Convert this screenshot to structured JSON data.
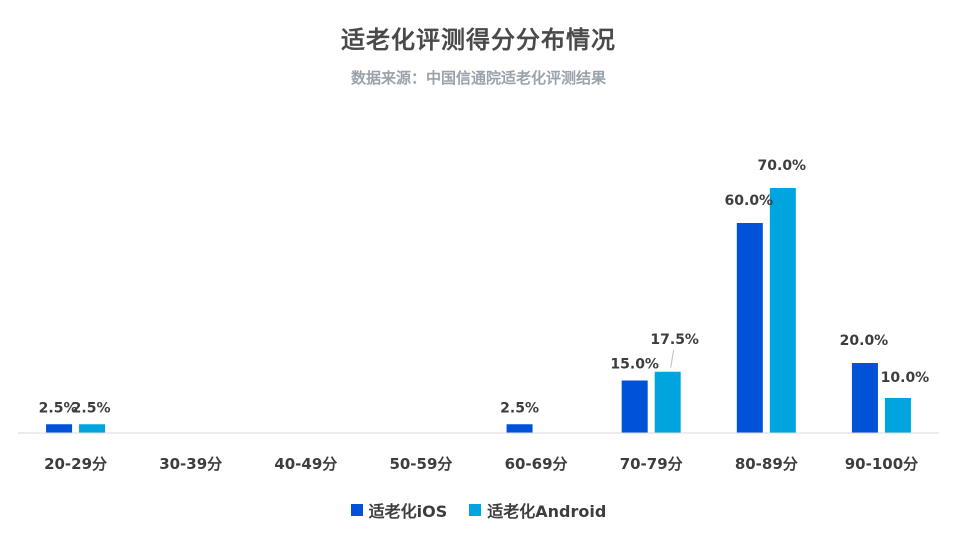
{
  "title": "适老化评测得分分布情况",
  "subtitle": "数据来源：中国信通院适老化评测结果",
  "colors": {
    "series_0": "#0052D9",
    "series_1": "#00A5E0",
    "axis": "#d9d9d9",
    "label_text": "#3d3d3d",
    "leader_line": "#bfbfbf"
  },
  "chart_data": {
    "type": "bar",
    "title": "适老化评测得分分布情况",
    "subtitle": "数据来源：中国信通院适老化评测结果",
    "categories": [
      "20-29分",
      "30-39分",
      "40-49分",
      "50-59分",
      "60-69分",
      "70-79分",
      "80-89分",
      "90-100分"
    ],
    "series": [
      {
        "name": "适老化iOS",
        "values": [
          2.5,
          0,
          0,
          0,
          2.5,
          15.0,
          60.0,
          20.0
        ],
        "labels": [
          "2.5%",
          "",
          "",
          "",
          "2.5%",
          "15.0%",
          "60.0%",
          "20.0%"
        ]
      },
      {
        "name": "适老化Android",
        "values": [
          2.5,
          0,
          0,
          0,
          0,
          17.5,
          70.0,
          10.0
        ],
        "labels": [
          "2.5%",
          "",
          "",
          "",
          "",
          "17.5%",
          "70.0%",
          "10.0%"
        ]
      }
    ],
    "ylim": [
      0,
      70
    ],
    "grid": false,
    "legend_position": "bottom"
  }
}
